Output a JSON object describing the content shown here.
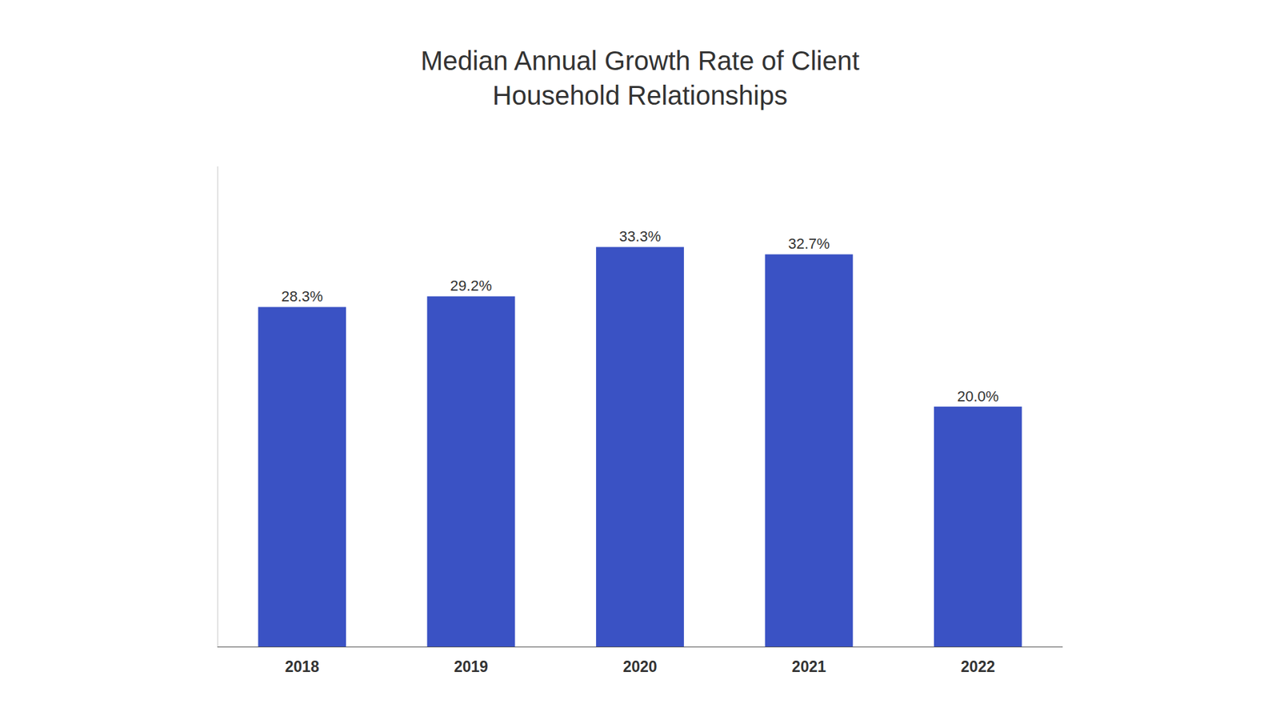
{
  "chart_data": {
    "type": "bar",
    "title": "Median Annual Growth Rate of Client\nHousehold Relationships",
    "categories": [
      "2018",
      "2019",
      "2020",
      "2021",
      "2022"
    ],
    "values": [
      28.3,
      29.2,
      33.3,
      32.7,
      20.0
    ],
    "value_labels": [
      "28.3%",
      "29.2%",
      "33.3%",
      "32.7%",
      "20.0%"
    ],
    "color": "#3a52c4",
    "ylim": [
      0,
      40
    ],
    "data_labels": true,
    "tick_labels": "x",
    "grid": false
  }
}
